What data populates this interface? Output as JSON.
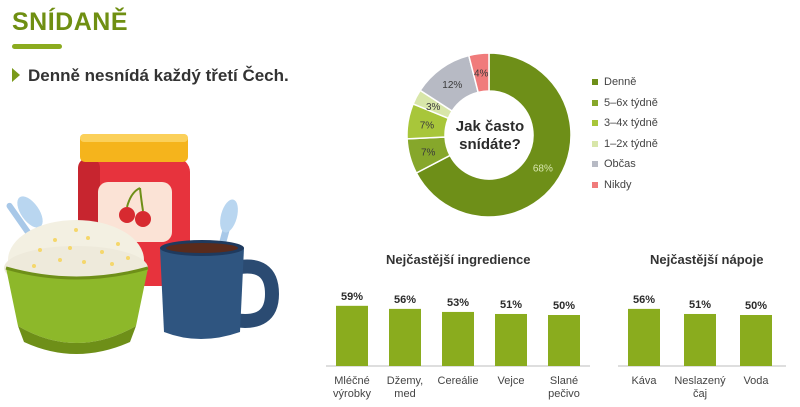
{
  "header": {
    "title": "SNÍDANĚ",
    "subtitle": "Denně nesnídá každý třetí Čech."
  },
  "colors": {
    "accent": "#7a9a1b",
    "bar": "#8aac1e",
    "title": "#6f8f12"
  },
  "chart_data": [
    {
      "type": "pie",
      "title": "Jak často snídáte?",
      "center_label_lines": [
        "Jak často",
        "snídáte?"
      ],
      "labels": [
        "Denně",
        "5–6x týdně",
        "3–4x týdně",
        "1–2x týdně",
        "Občas",
        "Nikdy"
      ],
      "values": [
        68,
        7,
        7,
        3,
        12,
        4
      ],
      "value_labels": [
        "68%",
        "7%",
        "7%",
        "3%",
        "12%",
        "4%"
      ],
      "colors": [
        "#6e8f18",
        "#86a72b",
        "#a8c63a",
        "#d8e6a9",
        "#b7bac4",
        "#f07b7b"
      ],
      "legend_position": "right"
    },
    {
      "type": "bar",
      "title": "Nejčastější ingredience",
      "categories": [
        "Mléčné výrobky",
        "Džemy, med",
        "Cereálie",
        "Vejce",
        "Slané pečivo"
      ],
      "category_lines": [
        [
          "Mléčné",
          "výrobky"
        ],
        [
          "Džemy,",
          "med"
        ],
        [
          "Cereálie"
        ],
        [
          "Vejce"
        ],
        [
          "Slané",
          "pečivo"
        ]
      ],
      "values": [
        59,
        56,
        53,
        51,
        50
      ],
      "value_labels": [
        "59%",
        "56%",
        "53%",
        "51%",
        "50%"
      ]
    },
    {
      "type": "bar",
      "title": "Nejčastější nápoje",
      "categories": [
        "Káva",
        "Neslazený čaj",
        "Voda"
      ],
      "category_lines": [
        [
          "Káva"
        ],
        [
          "Neslazený",
          "čaj"
        ],
        [
          "Voda"
        ]
      ],
      "values": [
        56,
        51,
        50
      ],
      "value_labels": [
        "56%",
        "51%",
        "50%"
      ]
    }
  ]
}
